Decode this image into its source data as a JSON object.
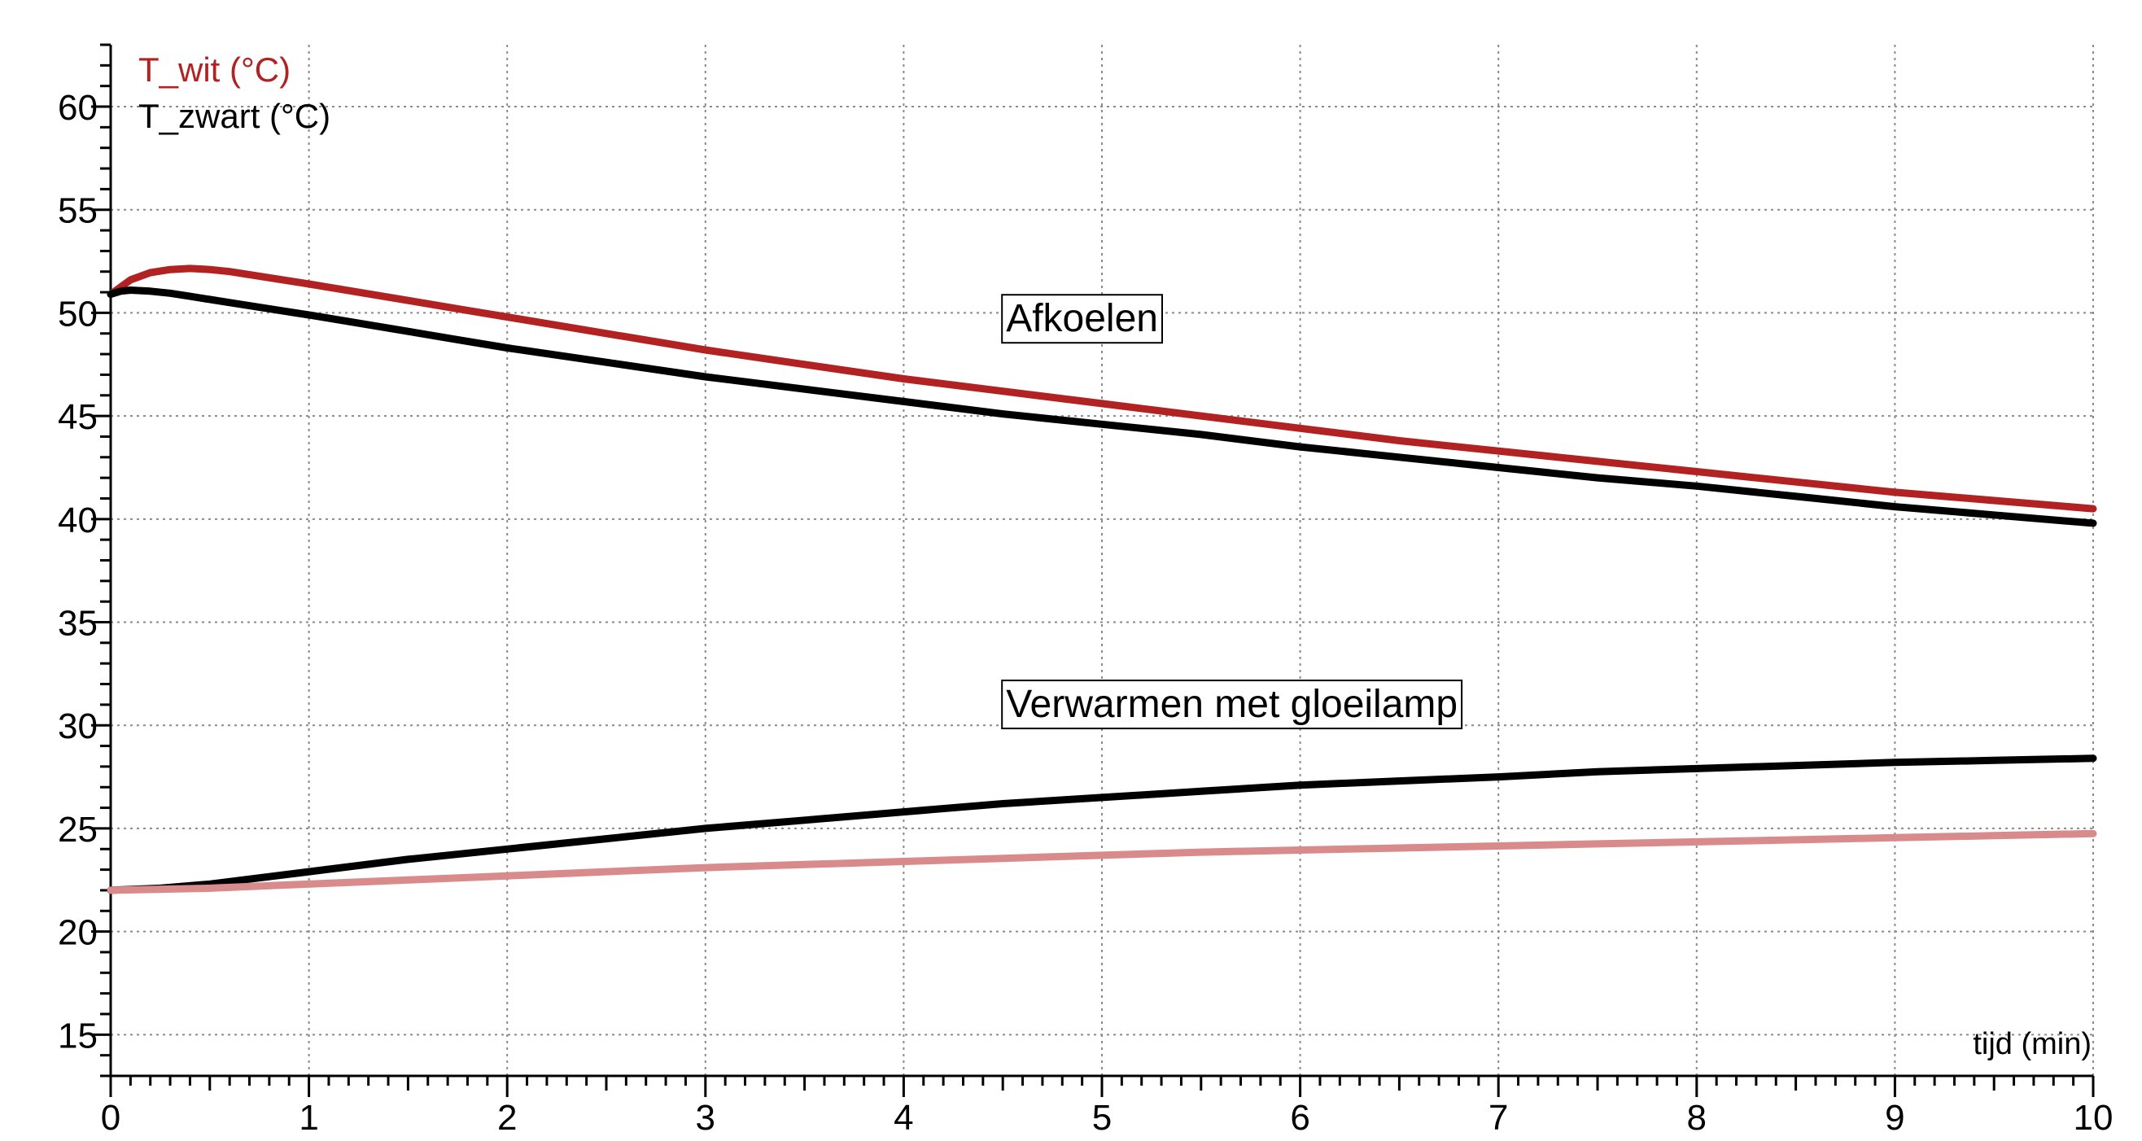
{
  "chart_data": {
    "type": "line",
    "xlabel": "tijd (min)",
    "ylabel": "",
    "xlim": [
      0,
      10
    ],
    "ylim": [
      13,
      63
    ],
    "xticks": [
      0,
      1,
      2,
      3,
      4,
      5,
      6,
      7,
      8,
      9,
      10
    ],
    "yticks": [
      15,
      20,
      25,
      30,
      35,
      40,
      45,
      50,
      55,
      60
    ],
    "grid": true,
    "legend_position": "top-left",
    "legend": [
      {
        "label": "T_wit (°C)",
        "color": "#b22222"
      },
      {
        "label": "T_zwart (°C)",
        "color": "#000000"
      }
    ],
    "annotations": [
      {
        "text": "Afkoelen",
        "x": 4.5,
        "y": 49.1
      },
      {
        "text": "Verwarmen met gloeilamp",
        "x": 4.5,
        "y": 30.4
      }
    ],
    "series": [
      {
        "name": "T_wit (°C)",
        "group": "Afkoelen",
        "color": "#b22222",
        "x": [
          0,
          0.1,
          0.2,
          0.3,
          0.4,
          0.5,
          0.6,
          0.8,
          1,
          1.25,
          1.5,
          1.75,
          2,
          2.5,
          3,
          3.5,
          4,
          4.5,
          5,
          5.5,
          6,
          6.5,
          7,
          7.5,
          8,
          8.5,
          9,
          9.5,
          10
        ],
        "y": [
          50.9,
          51.6,
          51.95,
          52.1,
          52.15,
          52.1,
          52.0,
          51.7,
          51.4,
          51.0,
          50.6,
          50.2,
          49.8,
          49.0,
          48.2,
          47.5,
          46.8,
          46.2,
          45.6,
          45.0,
          44.4,
          43.8,
          43.3,
          42.8,
          42.3,
          41.8,
          41.3,
          40.9,
          40.5
        ]
      },
      {
        "name": "T_zwart (°C)",
        "group": "Afkoelen",
        "color": "#000000",
        "x": [
          0,
          0.05,
          0.1,
          0.2,
          0.3,
          0.4,
          0.6,
          0.8,
          1,
          1.25,
          1.5,
          1.75,
          2,
          2.5,
          3,
          3.5,
          4,
          4.5,
          5,
          5.5,
          6,
          6.5,
          7,
          7.5,
          8,
          8.5,
          9,
          9.5,
          10
        ],
        "y": [
          50.9,
          51.05,
          51.1,
          51.05,
          50.95,
          50.8,
          50.5,
          50.2,
          49.9,
          49.5,
          49.1,
          48.7,
          48.3,
          47.6,
          46.9,
          46.3,
          45.7,
          45.1,
          44.6,
          44.1,
          43.5,
          43.0,
          42.5,
          42.0,
          41.6,
          41.1,
          40.6,
          40.2,
          39.8
        ]
      },
      {
        "name": "T_zwart (°C)",
        "group": "Verwarmen met gloeilamp",
        "color": "#000000",
        "x": [
          0,
          0.25,
          0.5,
          0.75,
          1,
          1.5,
          2,
          2.5,
          3,
          3.5,
          4,
          4.5,
          5,
          5.5,
          6,
          6.5,
          7,
          7.5,
          8,
          8.5,
          9,
          9.5,
          10
        ],
        "y": [
          22.0,
          22.1,
          22.3,
          22.6,
          22.9,
          23.5,
          24.0,
          24.5,
          25.0,
          25.4,
          25.8,
          26.2,
          26.5,
          26.8,
          27.1,
          27.3,
          27.5,
          27.75,
          27.9,
          28.05,
          28.2,
          28.3,
          28.4
        ]
      },
      {
        "name": "T_wit (°C)",
        "group": "Verwarmen met gloeilamp",
        "color": "#d98a8a",
        "x": [
          0,
          0.5,
          1,
          1.5,
          2,
          2.5,
          3,
          3.5,
          4,
          4.5,
          5,
          5.5,
          6,
          6.5,
          7,
          7.5,
          8,
          8.5,
          9,
          9.5,
          10
        ],
        "y": [
          22.0,
          22.1,
          22.3,
          22.5,
          22.7,
          22.9,
          23.1,
          23.25,
          23.4,
          23.55,
          23.7,
          23.85,
          23.95,
          24.05,
          24.15,
          24.25,
          24.35,
          24.45,
          24.55,
          24.65,
          24.75
        ]
      }
    ]
  }
}
